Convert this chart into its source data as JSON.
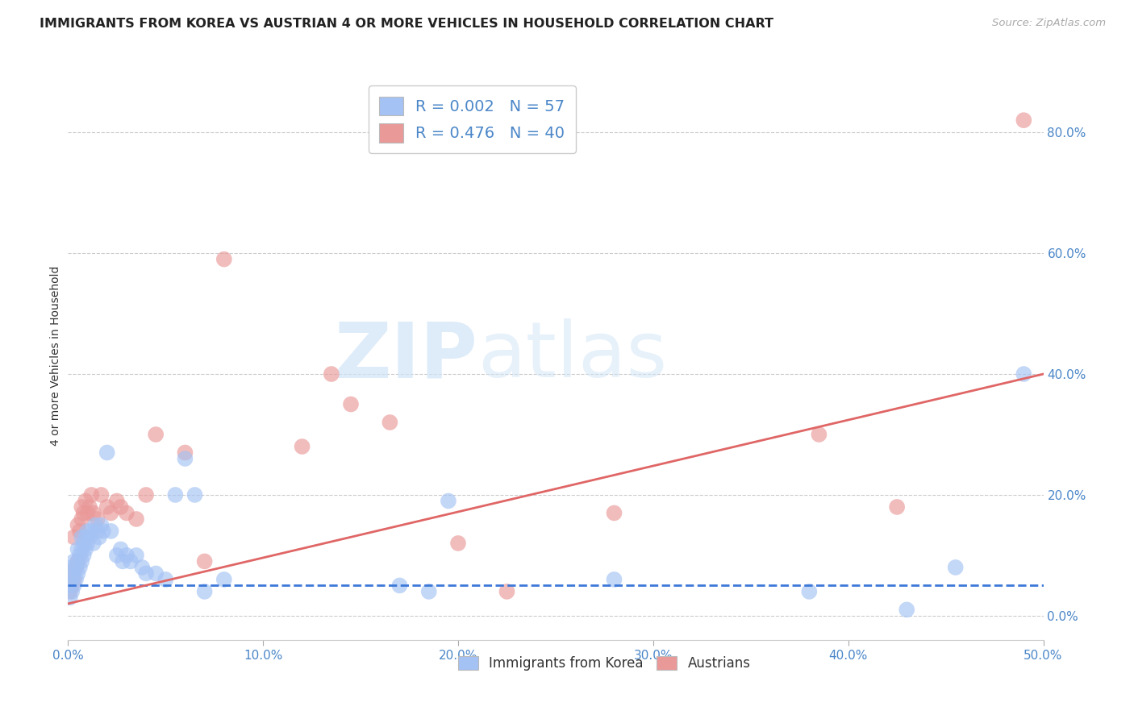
{
  "title": "IMMIGRANTS FROM KOREA VS AUSTRIAN 4 OR MORE VEHICLES IN HOUSEHOLD CORRELATION CHART",
  "source": "Source: ZipAtlas.com",
  "ylabel": "4 or more Vehicles in Household",
  "xlim": [
    0.0,
    0.5
  ],
  "ylim": [
    -0.04,
    0.9
  ],
  "xticks": [
    0.0,
    0.1,
    0.2,
    0.3,
    0.4,
    0.5
  ],
  "xticklabels": [
    "0.0%",
    "10.0%",
    "20.0%",
    "30.0%",
    "40.0%",
    "50.0%"
  ],
  "yticks": [
    0.0,
    0.2,
    0.4,
    0.6,
    0.8
  ],
  "yticklabels": [
    "0.0%",
    "20.0%",
    "40.0%",
    "60.0%",
    "80.0%"
  ],
  "legend1_labels": [
    "R = 0.002   N = 57",
    "R = 0.476   N = 40"
  ],
  "legend2_labels": [
    "Immigrants from Korea",
    "Austrians"
  ],
  "blue_color": "#a4c2f4",
  "pink_color": "#ea9999",
  "blue_line_color": "#3c78d8",
  "pink_line_color": "#e06666",
  "watermark_zip": "ZIP",
  "watermark_atlas": "atlas",
  "blue_R": 0.002,
  "pink_R": 0.476,
  "blue_scatter_x": [
    0.001,
    0.001,
    0.002,
    0.002,
    0.002,
    0.003,
    0.003,
    0.003,
    0.004,
    0.004,
    0.005,
    0.005,
    0.005,
    0.006,
    0.006,
    0.007,
    0.007,
    0.007,
    0.008,
    0.008,
    0.009,
    0.009,
    0.01,
    0.01,
    0.011,
    0.012,
    0.013,
    0.014,
    0.015,
    0.016,
    0.017,
    0.018,
    0.02,
    0.022,
    0.025,
    0.027,
    0.028,
    0.03,
    0.032,
    0.035,
    0.038,
    0.04,
    0.045,
    0.05,
    0.055,
    0.06,
    0.065,
    0.07,
    0.08,
    0.17,
    0.185,
    0.195,
    0.28,
    0.38,
    0.43,
    0.455,
    0.49
  ],
  "blue_scatter_y": [
    0.03,
    0.05,
    0.04,
    0.06,
    0.08,
    0.05,
    0.07,
    0.09,
    0.06,
    0.08,
    0.07,
    0.09,
    0.11,
    0.08,
    0.1,
    0.09,
    0.11,
    0.13,
    0.1,
    0.12,
    0.11,
    0.13,
    0.12,
    0.14,
    0.13,
    0.14,
    0.12,
    0.15,
    0.14,
    0.13,
    0.15,
    0.14,
    0.27,
    0.14,
    0.1,
    0.11,
    0.09,
    0.1,
    0.09,
    0.1,
    0.08,
    0.07,
    0.07,
    0.06,
    0.2,
    0.26,
    0.2,
    0.04,
    0.06,
    0.05,
    0.04,
    0.19,
    0.06,
    0.04,
    0.01,
    0.08,
    0.4
  ],
  "pink_scatter_x": [
    0.001,
    0.002,
    0.002,
    0.003,
    0.003,
    0.004,
    0.005,
    0.005,
    0.006,
    0.007,
    0.007,
    0.008,
    0.009,
    0.01,
    0.011,
    0.012,
    0.013,
    0.015,
    0.017,
    0.02,
    0.022,
    0.025,
    0.027,
    0.03,
    0.035,
    0.04,
    0.045,
    0.06,
    0.07,
    0.08,
    0.12,
    0.135,
    0.145,
    0.165,
    0.2,
    0.225,
    0.28,
    0.385,
    0.425,
    0.49
  ],
  "pink_scatter_y": [
    0.04,
    0.05,
    0.07,
    0.06,
    0.13,
    0.08,
    0.09,
    0.15,
    0.14,
    0.16,
    0.18,
    0.17,
    0.19,
    0.17,
    0.18,
    0.2,
    0.17,
    0.16,
    0.2,
    0.18,
    0.17,
    0.19,
    0.18,
    0.17,
    0.16,
    0.2,
    0.3,
    0.27,
    0.09,
    0.59,
    0.28,
    0.4,
    0.35,
    0.32,
    0.12,
    0.04,
    0.17,
    0.3,
    0.18,
    0.82
  ],
  "blue_line_y0": 0.05,
  "blue_line_y1": 0.05,
  "pink_line_x0": 0.0,
  "pink_line_x1": 0.5,
  "pink_line_y0": 0.02,
  "pink_line_y1": 0.4
}
